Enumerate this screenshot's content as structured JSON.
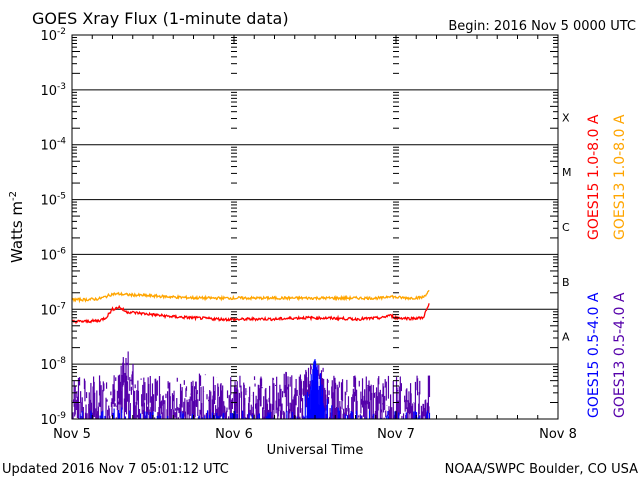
{
  "chart_data": {
    "type": "line",
    "title": "GOES Xray Flux (1-minute data)",
    "begin": "Begin:  2016 Nov 5 0000 UTC",
    "xlabel": "Universal Time",
    "ylabel": "Watts m",
    "ylabel_sup": "-2",
    "x_unit": "hours since 2016 Nov 5 0000 UTC",
    "xlim": [
      0,
      72
    ],
    "x_ticks": [
      {
        "value": 0,
        "label": "Nov 5"
      },
      {
        "value": 24,
        "label": "Nov 6"
      },
      {
        "value": 48,
        "label": "Nov 7"
      },
      {
        "value": 72,
        "label": "Nov 8"
      }
    ],
    "ylim": [
      1e-09,
      0.01
    ],
    "yscale": "log",
    "y_ticks": [
      {
        "value": 0.01,
        "exp": "-2"
      },
      {
        "value": 0.001,
        "exp": "-3"
      },
      {
        "value": 0.0001,
        "exp": "-4"
      },
      {
        "value": 1e-05,
        "exp": "-5"
      },
      {
        "value": 1e-06,
        "exp": "-6"
      },
      {
        "value": 1e-07,
        "exp": "-7"
      },
      {
        "value": 1e-08,
        "exp": "-8"
      },
      {
        "value": 1e-09,
        "exp": "-9"
      }
    ],
    "flare_classes": [
      {
        "label": "X",
        "value": 0.0001
      },
      {
        "label": "M",
        "value": 1e-05
      },
      {
        "label": "C",
        "value": 1e-06
      },
      {
        "label": "B",
        "value": 1e-07
      },
      {
        "label": "A",
        "value": 1e-08
      }
    ],
    "x": [
      0,
      2,
      4,
      5,
      6,
      7,
      8,
      10,
      12,
      14,
      16,
      18,
      20,
      22,
      24,
      26,
      28,
      30,
      32,
      34,
      36,
      38,
      40,
      42,
      44,
      46,
      47,
      48,
      50,
      52,
      53
    ],
    "series": [
      {
        "name": "GOES15 1.0-8.0 A",
        "color": "#ff0000",
        "values": [
          6e-08,
          6e-08,
          6.2e-08,
          7e-08,
          1e-07,
          1.1e-07,
          9e-08,
          8.5e-08,
          8e-08,
          7.5e-08,
          7.2e-08,
          7e-08,
          6.8e-08,
          6.6e-08,
          6.5e-08,
          6.6e-08,
          6.7e-08,
          6.6e-08,
          6.8e-08,
          7e-08,
          7e-08,
          6.9e-08,
          6.8e-08,
          6.6e-08,
          6.8e-08,
          7e-08,
          7.8e-08,
          7e-08,
          6.8e-08,
          7e-08,
          1.3e-07
        ]
      },
      {
        "name": "GOES13 1.0-8.0 A",
        "color": "#ffa500",
        "values": [
          1.5e-07,
          1.5e-07,
          1.55e-07,
          1.7e-07,
          1.9e-07,
          1.9e-07,
          1.85e-07,
          1.8e-07,
          1.75e-07,
          1.7e-07,
          1.65e-07,
          1.62e-07,
          1.6e-07,
          1.6e-07,
          1.6e-07,
          1.6e-07,
          1.6e-07,
          1.6e-07,
          1.6e-07,
          1.6e-07,
          1.6e-07,
          1.6e-07,
          1.6e-07,
          1.6e-07,
          1.6e-07,
          1.6e-07,
          1.75e-07,
          1.65e-07,
          1.6e-07,
          1.65e-07,
          2.2e-07
        ]
      },
      {
        "name": "GOES15 0.5-4.0 A",
        "color": "#0000ff",
        "values": [
          1e-09,
          1e-09,
          1e-09,
          1e-09,
          1e-09,
          1.5e-09,
          1e-09,
          1e-09,
          1e-09,
          1e-09,
          1e-09,
          1e-09,
          1e-09,
          1e-09,
          1e-09,
          1e-09,
          1e-09,
          1e-09,
          1e-09,
          1e-09,
          1.3e-08,
          1.5e-09,
          1e-09,
          1e-09,
          1e-09,
          1e-09,
          1e-09,
          1e-09,
          1e-09,
          1e-09,
          1e-09
        ]
      },
      {
        "name": "GOES13 0.5-4.0 A",
        "color": "#5500aa",
        "values": [
          2.5e-09,
          2.5e-09,
          2.5e-09,
          2.5e-09,
          2.8e-09,
          3e-09,
          8e-09,
          3e-09,
          2.5e-09,
          2.5e-09,
          2.5e-09,
          3e-09,
          2.5e-09,
          2.5e-09,
          2.5e-09,
          2.5e-09,
          2.5e-09,
          2.5e-09,
          3e-09,
          3e-09,
          5e-09,
          3e-09,
          3e-09,
          2.5e-09,
          2.5e-09,
          2.5e-09,
          2.5e-09,
          2.5e-09,
          2.5e-09,
          2.5e-09,
          2.5e-09
        ]
      }
    ]
  },
  "footer": {
    "updated": "Updated 2016 Nov  7 05:01:12 UTC",
    "source": "NOAA/SWPC Boulder, CO USA"
  }
}
